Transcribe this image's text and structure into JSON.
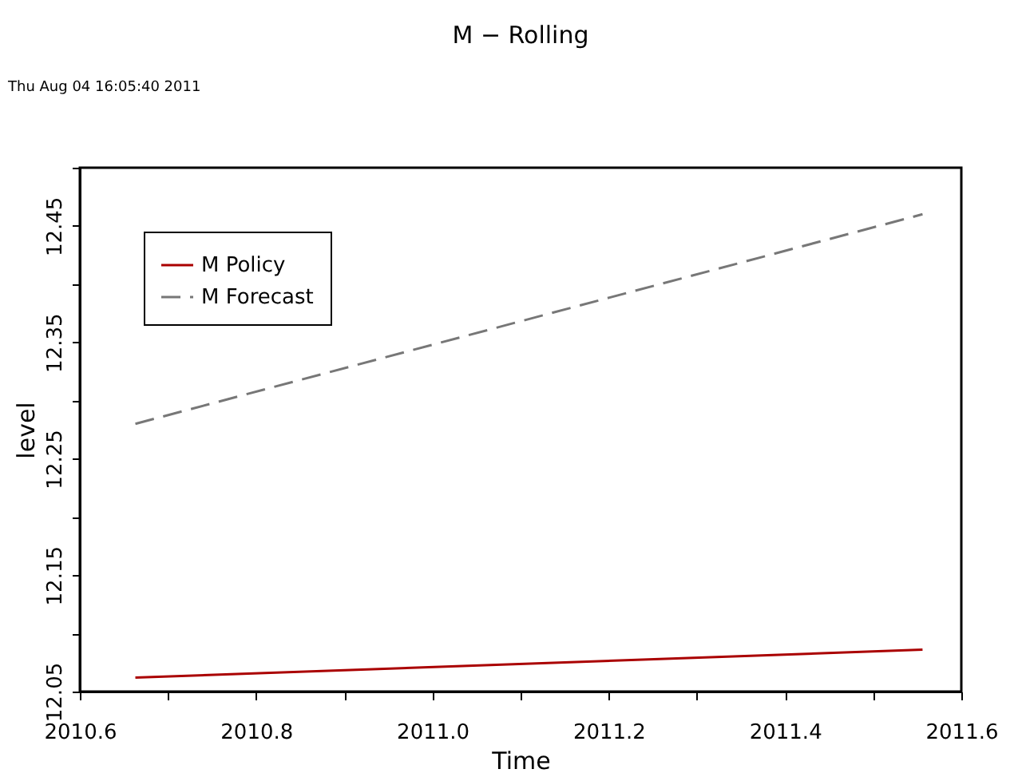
{
  "chart_data": {
    "type": "line",
    "title": "M − Rolling",
    "xlabel": "Time",
    "ylabel": "level",
    "annotations": [
      "Thu Aug 04 16:05:40 2011"
    ],
    "xlim": [
      2010.6,
      2011.6
    ],
    "xticks": [
      {
        "value": 2010.6,
        "label": "2010.6"
      },
      {
        "value": 2010.7,
        "label": null
      },
      {
        "value": 2010.8,
        "label": "2010.8"
      },
      {
        "value": 2010.9,
        "label": null
      },
      {
        "value": 2011.0,
        "label": "2011.0"
      },
      {
        "value": 2011.1,
        "label": null
      },
      {
        "value": 2011.2,
        "label": "2011.2"
      },
      {
        "value": 2011.3,
        "label": null
      },
      {
        "value": 2011.4,
        "label": "2011.4"
      },
      {
        "value": 2011.5,
        "label": null
      },
      {
        "value": 2011.6,
        "label": "2011.6"
      }
    ],
    "ylim": [
      12.05,
      12.5
    ],
    "yticks": [
      12.05,
      {
        "value": 12.1,
        "label": null
      },
      12.15,
      {
        "value": 12.2,
        "label": null
      },
      12.25,
      {
        "value": 12.3,
        "label": null
      },
      12.35,
      {
        "value": 12.4,
        "label": null
      },
      12.45,
      {
        "value": 12.5,
        "label": null
      }
    ],
    "x": [
      2010.663,
      2011.556
    ],
    "series": [
      {
        "name": "M Policy",
        "color": "#aa0000",
        "line_style": "solid",
        "values": [
          12.062,
          12.086
        ]
      },
      {
        "name": "M Forecast",
        "color": "#777777",
        "line_style": "dashed",
        "values": [
          12.28,
          12.46
        ]
      }
    ],
    "legend": "top left",
    "grid": false,
    "marker": "none"
  }
}
